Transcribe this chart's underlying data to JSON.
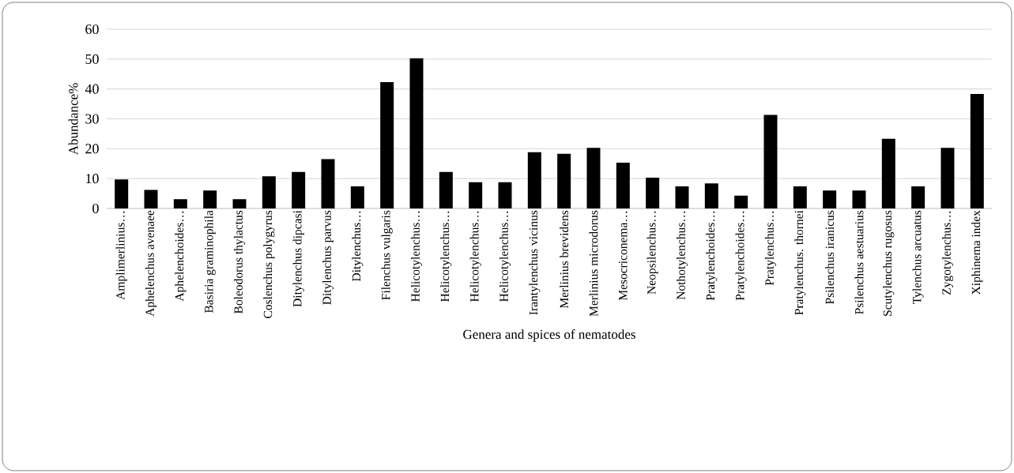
{
  "chart_data": {
    "type": "bar",
    "xlabel": "Genera and spices of nematodes",
    "ylabel": "Abundance%",
    "categories": [
      "Amplimerlinius…",
      "Aphelenchus avenaee",
      "Aphelenchoides…",
      "Basiria graminophila",
      "Boleodorus thylactus",
      "Coslenchus polygyrus",
      "Ditylenchus dipcasi",
      "Ditylenchus parvus",
      "Ditylenchus…",
      "Filenchus vulgaris",
      "Helicotylenchus…",
      "Helicotylenchus…",
      "Helicotylenchus…",
      "Helicotylenchus…",
      "Irantylenchus vicinus",
      "Merlinius brevidens",
      "Merlinius microdorus",
      "Mesocriconema…",
      "Neopsilenchus…",
      "Nothotylenchus…",
      "Pratylenchoides…",
      "Pratylenchoides…",
      "Pratylenchus…",
      "Pratylenchus. thornei",
      "Psilenchus iranicus",
      "Psilenchus aestuarius",
      "Scutylenchus rugosus",
      "Tylenchus arcuatus",
      "Zygotylenchus…",
      "Xiphinema index"
    ],
    "values": [
      9.7,
      6.2,
      3.1,
      6.0,
      3.1,
      10.8,
      12.2,
      16.5,
      7.4,
      42.3,
      50.3,
      12.2,
      8.8,
      8.8,
      18.8,
      18.3,
      20.3,
      15.3,
      10.3,
      7.4,
      8.4,
      4.3,
      31.3,
      7.4,
      6.0,
      6.0,
      23.3,
      7.4,
      20.3,
      38.3
    ],
    "color": "#000000",
    "ylim": [
      0,
      60
    ],
    "yticks": [
      0,
      10,
      20,
      30,
      40,
      50,
      60
    ],
    "grid": "y"
  }
}
